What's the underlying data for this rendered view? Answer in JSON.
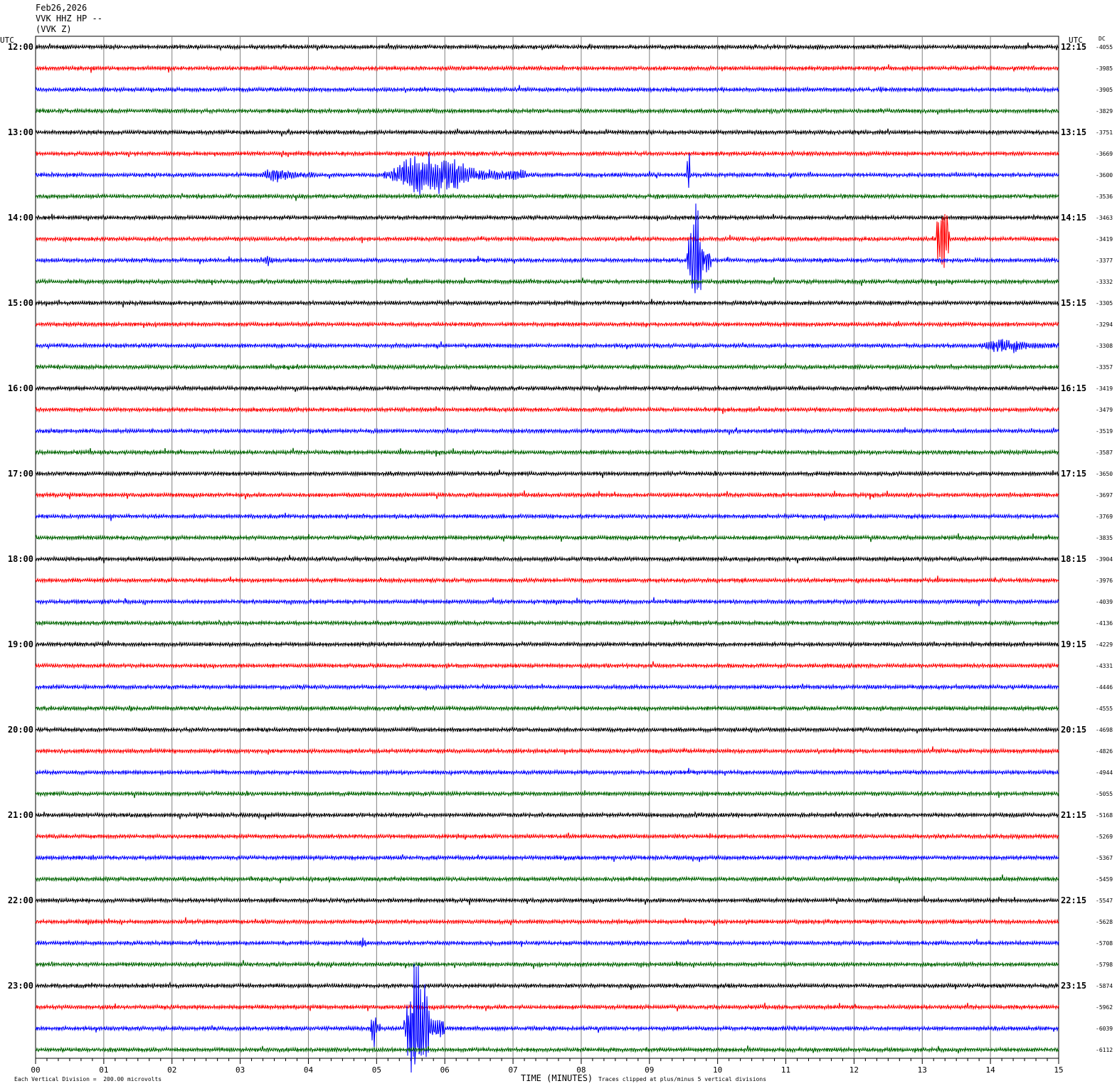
{
  "header": {
    "date": "Feb26,2026",
    "station": "VVK HHZ HP --",
    "component": "(VVK Z)"
  },
  "left_axis_label": "UTC",
  "right_axis_label": "UTC",
  "dc_label": "DC",
  "footer": {
    "scale_note": "Each Vertical Division =  200.00 microvolts",
    "x_title": "TIME (MINUTES)",
    "clip_note": "Traces clipped at plus/minus 5 vertical divisions"
  },
  "chart_data": {
    "type": "line",
    "title": "Feb26,2026",
    "xlabel": "TIME (MINUTES)",
    "xlim": [
      0,
      15
    ],
    "x_ticks": [
      "00",
      "01",
      "02",
      "03",
      "04",
      "05",
      "06",
      "07",
      "08",
      "09",
      "10",
      "11",
      "12",
      "13",
      "14",
      "15"
    ],
    "trace_colors": [
      "#000000",
      "#ff0000",
      "#0000ff",
      "#006400"
    ],
    "rows_per_hour": 4,
    "left_hour_labels": [
      "12:00",
      "13:00",
      "14:00",
      "15:00",
      "16:00",
      "17:00",
      "18:00",
      "19:00",
      "20:00",
      "21:00",
      "22:00",
      "23:00"
    ],
    "right_hour_labels": [
      "12:15",
      "13:15",
      "14:15",
      "15:15",
      "16:15",
      "17:15",
      "18:15",
      "19:15",
      "20:15",
      "21:15",
      "22:15",
      "23:15"
    ],
    "dc_offsets": [
      -4055,
      -3985,
      -3905,
      -3829,
      -3751,
      -3669,
      -3600,
      -3536,
      -3463,
      -3419,
      -3377,
      -3332,
      -3305,
      -3294,
      -3308,
      -3357,
      -3419,
      -3479,
      -3519,
      -3587,
      -3650,
      -3697,
      -3769,
      -3835,
      -3904,
      -3976,
      -4039,
      -4136,
      -4229,
      -4331,
      -4446,
      -4555,
      -4698,
      -4826,
      -4944,
      -5055,
      -5168,
      -5269,
      -5367,
      -5459,
      -5547,
      -5628,
      -5708,
      -5798,
      -5874,
      -5962,
      -6039,
      -6112
    ],
    "events": [
      {
        "row": 6,
        "start_min": 3.3,
        "end_min": 4.1,
        "amplitude": 0.35,
        "type": "emergent"
      },
      {
        "row": 6,
        "start_min": 5.1,
        "end_min": 7.2,
        "amplitude": 1.2,
        "type": "emergent"
      },
      {
        "row": 6,
        "start_min": 9.55,
        "end_min": 9.6,
        "amplitude": 1.0,
        "type": "spike"
      },
      {
        "row": 9,
        "start_min": 13.2,
        "end_min": 13.4,
        "amplitude": 1.4,
        "type": "spike"
      },
      {
        "row": 10,
        "start_min": 9.55,
        "end_min": 9.9,
        "amplitude": 3.6,
        "type": "emergent"
      },
      {
        "row": 10,
        "start_min": 3.35,
        "end_min": 3.5,
        "amplitude": 0.3,
        "type": "emergent"
      },
      {
        "row": 14,
        "start_min": 13.85,
        "end_min": 14.95,
        "amplitude": 0.35,
        "type": "emergent"
      },
      {
        "row": 46,
        "start_min": 4.9,
        "end_min": 5.05,
        "amplitude": 1.3,
        "type": "emergent"
      },
      {
        "row": 46,
        "start_min": 5.4,
        "end_min": 6.0,
        "amplitude": 3.8,
        "type": "emergent"
      },
      {
        "row": 42,
        "start_min": 4.75,
        "end_min": 4.9,
        "amplitude": 0.3,
        "type": "emergent"
      }
    ]
  }
}
